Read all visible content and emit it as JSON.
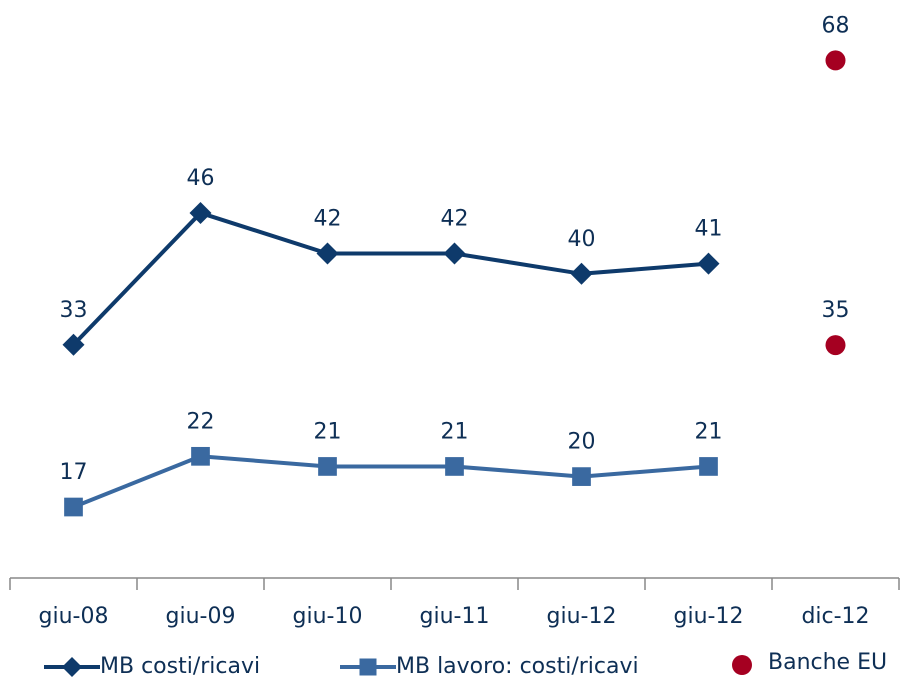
{
  "chart_data": {
    "type": "line",
    "categories": [
      "giu-08",
      "giu-09",
      "giu-10",
      "giu-11",
      "giu-12",
      "giu-12",
      "dic-12"
    ],
    "series": [
      {
        "name": "MB costi/ricavi",
        "color": "#0e3a6b",
        "marker": "diamond",
        "values": [
          33,
          46,
          42,
          42,
          40,
          41,
          null
        ]
      },
      {
        "name": "MB lavoro: costi/ricavi",
        "color": "#3a69a0",
        "marker": "square",
        "values": [
          17,
          22,
          21,
          21,
          20,
          21,
          null
        ]
      },
      {
        "name": "Banche EU",
        "color": "#a50021",
        "marker": "circle",
        "axis": "y2",
        "values": [
          null,
          null,
          null,
          null,
          null,
          null,
          [
            68,
            35
          ]
        ]
      }
    ],
    "ylim": [
      10,
      67
    ],
    "y2lim": [
      8,
      75
    ],
    "legend": "bottom",
    "grid": false
  }
}
